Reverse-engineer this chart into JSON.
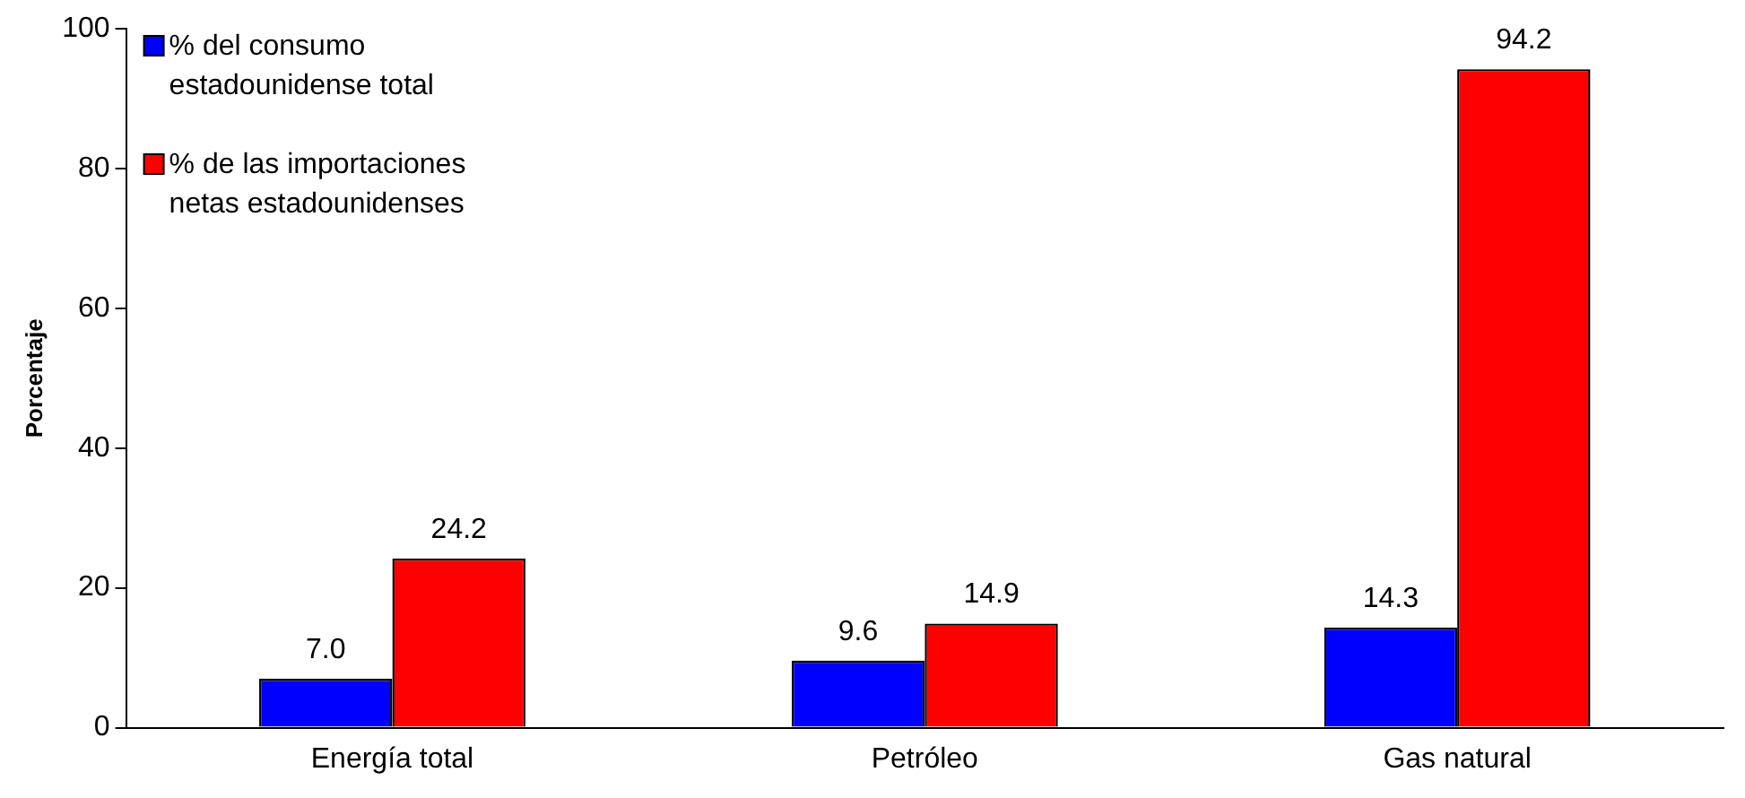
{
  "chart_data": {
    "type": "bar",
    "ylabel": "Porcentaje",
    "categories": [
      "Energía total",
      "Petróleo",
      "Gas natural"
    ],
    "series": [
      {
        "name": "% del consumo estadounidense total",
        "color": "#0000ff",
        "values": [
          7.0,
          9.6,
          14.3
        ],
        "value_labels": [
          "7.0",
          "9.6",
          "14.3"
        ]
      },
      {
        "name": "% de las importaciones netas estadounidenses",
        "color": "#ff0000",
        "values": [
          24.2,
          14.9,
          94.2
        ],
        "value_labels": [
          "24.2",
          "14.9",
          "94.2"
        ]
      }
    ],
    "ylim": [
      0,
      100
    ],
    "yticks": [
      0,
      20,
      40,
      60,
      80,
      100
    ],
    "grid": false,
    "legend": "top left"
  }
}
